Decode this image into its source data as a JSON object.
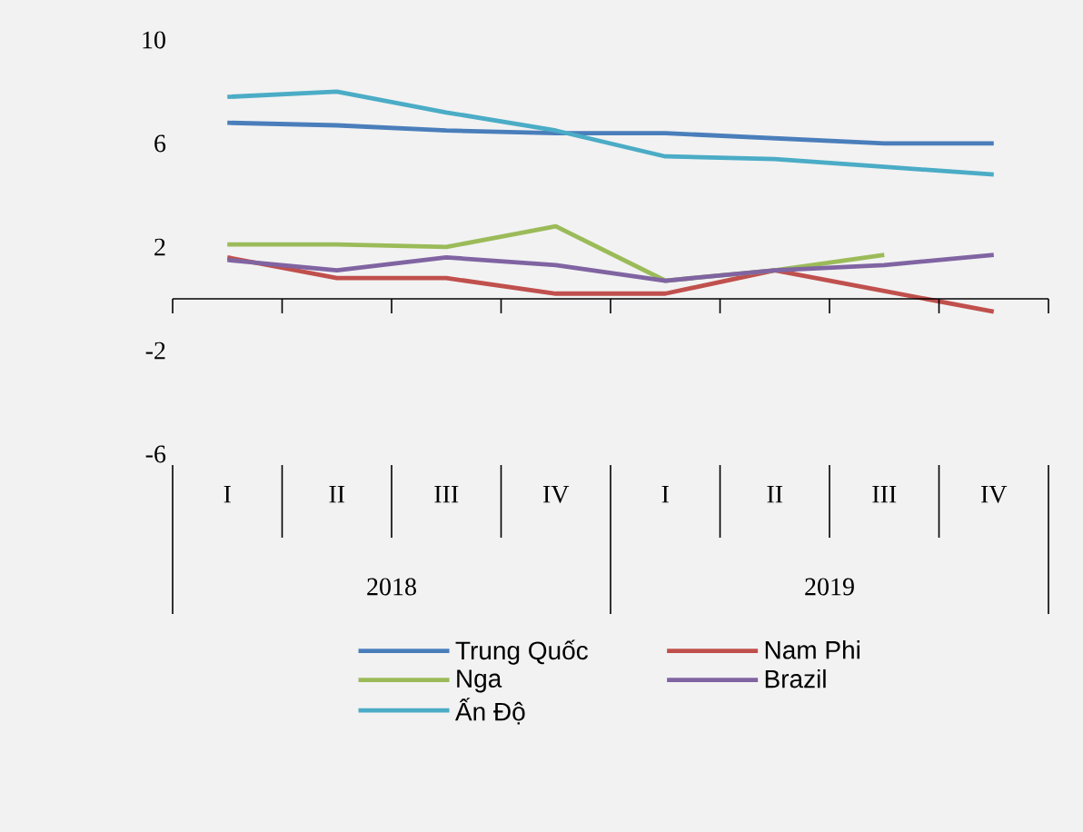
{
  "chart_data": {
    "type": "line",
    "categories": [
      "I",
      "II",
      "III",
      "IV",
      "I",
      "II",
      "III",
      "IV"
    ],
    "annotations": [
      "2018",
      "2019"
    ],
    "series": [
      {
        "name": "Trung Quốc",
        "color": "#4a7ebb",
        "values": [
          6.8,
          6.7,
          6.5,
          6.4,
          6.4,
          6.2,
          6.0,
          6.0
        ]
      },
      {
        "name": "Nam Phi",
        "color": "#c0504d",
        "values": [
          1.6,
          0.8,
          0.8,
          0.2,
          0.2,
          1.1,
          0.3,
          -0.5
        ]
      },
      {
        "name": "Nga",
        "color": "#9bbb59",
        "values": [
          2.1,
          2.1,
          2.0,
          2.8,
          0.7,
          1.1,
          1.7,
          null
        ]
      },
      {
        "name": "Brazil",
        "color": "#8064a2",
        "values": [
          1.5,
          1.1,
          1.6,
          1.3,
          0.7,
          1.1,
          1.3,
          1.7
        ]
      },
      {
        "name": "Ấn Độ",
        "color": "#4bacc6",
        "values": [
          7.8,
          8.0,
          7.2,
          6.5,
          5.5,
          5.4,
          5.1,
          4.8
        ]
      }
    ],
    "ylim": [
      -6,
      10
    ],
    "yticks": [
      -6,
      -2,
      2,
      6,
      10
    ],
    "grid": false,
    "legend": "bottom",
    "line_style": "solid"
  }
}
